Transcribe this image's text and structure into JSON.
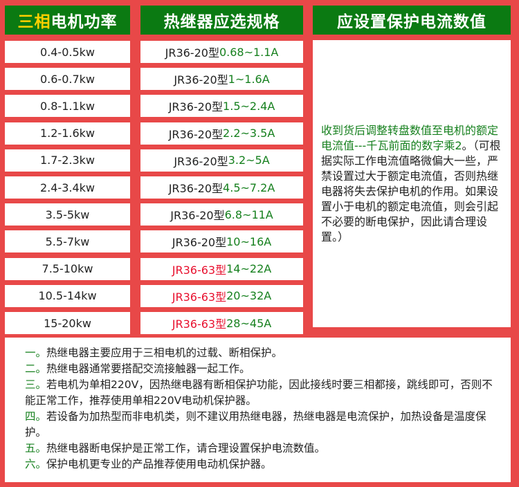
{
  "headers": {
    "col1_highlight": "三相",
    "col1_rest": "电机功率",
    "col2": "热继器应选规格",
    "col3": "应设置保护电流数值"
  },
  "rows": [
    {
      "power": "0.4-0.5kw",
      "model": "JR36-20型",
      "range": "0.68~1.1A",
      "model_color": "#222222"
    },
    {
      "power": "0.6-0.7kw",
      "model": "JR36-20型",
      "range": "1~1.6A",
      "model_color": "#222222"
    },
    {
      "power": "0.8-1.1kw",
      "model": "JR36-20型",
      "range": "1.5~2.4A",
      "model_color": "#222222"
    },
    {
      "power": "1.2-1.6kw",
      "model": "JR36-20型",
      "range": "2.2~3.5A",
      "model_color": "#222222"
    },
    {
      "power": "1.7-2.3kw",
      "model": "JR36-20型",
      "range": "3.2~5A",
      "model_color": "#222222"
    },
    {
      "power": "2.4-3.4kw",
      "model": "JR36-20型",
      "range": "4.5~7.2A",
      "model_color": "#222222"
    },
    {
      "power": "3.5-5kw",
      "model": "JR36-20型",
      "range": "6.8~11A",
      "model_color": "#222222"
    },
    {
      "power": "5.5-7kw",
      "model": "JR36-20型",
      "range": "10~16A",
      "model_color": "#222222"
    },
    {
      "power": "7.5-10kw",
      "model": "JR36-63型",
      "range": "14~22A",
      "model_color": "#e8102e"
    },
    {
      "power": "10.5-14kw",
      "model": "JR36-63型",
      "range": "20~32A",
      "model_color": "#e8102e"
    },
    {
      "power": "15-20kw",
      "model": "JR36-63型",
      "range": "28~45A",
      "model_color": "#e8102e"
    }
  ],
  "setting_note": {
    "green": "收到货后调整转盘数值至电机的额定电流值---千瓦前面的数字乘2",
    "rest": "。（可根据实际工作电流值略微偏大一些，严禁设置过大于额定电流值，否则热继电器将失去保护电机的作用。如果设置小于电机的额定电流值，则会引起不必要的断电保护，因此请合理设置。）"
  },
  "notes": [
    {
      "num": "一。",
      "text": "热继电器主要应用于三相电机的过载、断相保护。"
    },
    {
      "num": "二。",
      "text": "热继电器通常要搭配交流接触器一起工作。"
    },
    {
      "num": "三。",
      "text": "若电机为单相220V，因热继电器有断相保护功能，因此接线时要三相都接，跳线即可，否则不能正常工作，推荐使用单相220V电动机保护器。"
    },
    {
      "num": "四。",
      "text": "若设备为加热型而非电机类，则不建议用热继电器，热继电器是电流保护，加热设备是温度保护。"
    },
    {
      "num": "五。",
      "text": "热继电器断电保护是正常工作，请合理设置保护电流数值。"
    },
    {
      "num": "六。",
      "text": "保护电机更专业的产品推荐使用电动机保护器。"
    }
  ],
  "colors": {
    "background": "#e84848",
    "header": "#0b7a12",
    "highlight": "#ffd000",
    "green_text": "#16801e",
    "red_text": "#e8102e"
  }
}
